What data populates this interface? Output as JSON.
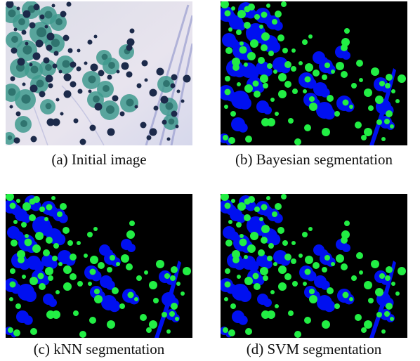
{
  "figure": {
    "panels": [
      {
        "id": "a",
        "caption": "(a) Initial image",
        "kind": "photo"
      },
      {
        "id": "b",
        "caption": "(b) Bayesian segmentation",
        "kind": "mask"
      },
      {
        "id": "c",
        "caption": "(c) kNN segmentation",
        "kind": "mask"
      },
      {
        "id": "d",
        "caption": "(d) SVM segmentation",
        "kind": "mask"
      }
    ],
    "colors": {
      "mask_background": "#000000",
      "cytoplasm": "#0010f0",
      "nucleus": "#22ee44",
      "photo_background": "#e8e4ee",
      "photo_cell": "#3f9a8e",
      "photo_nucleus": "#1c2a4a"
    }
  }
}
